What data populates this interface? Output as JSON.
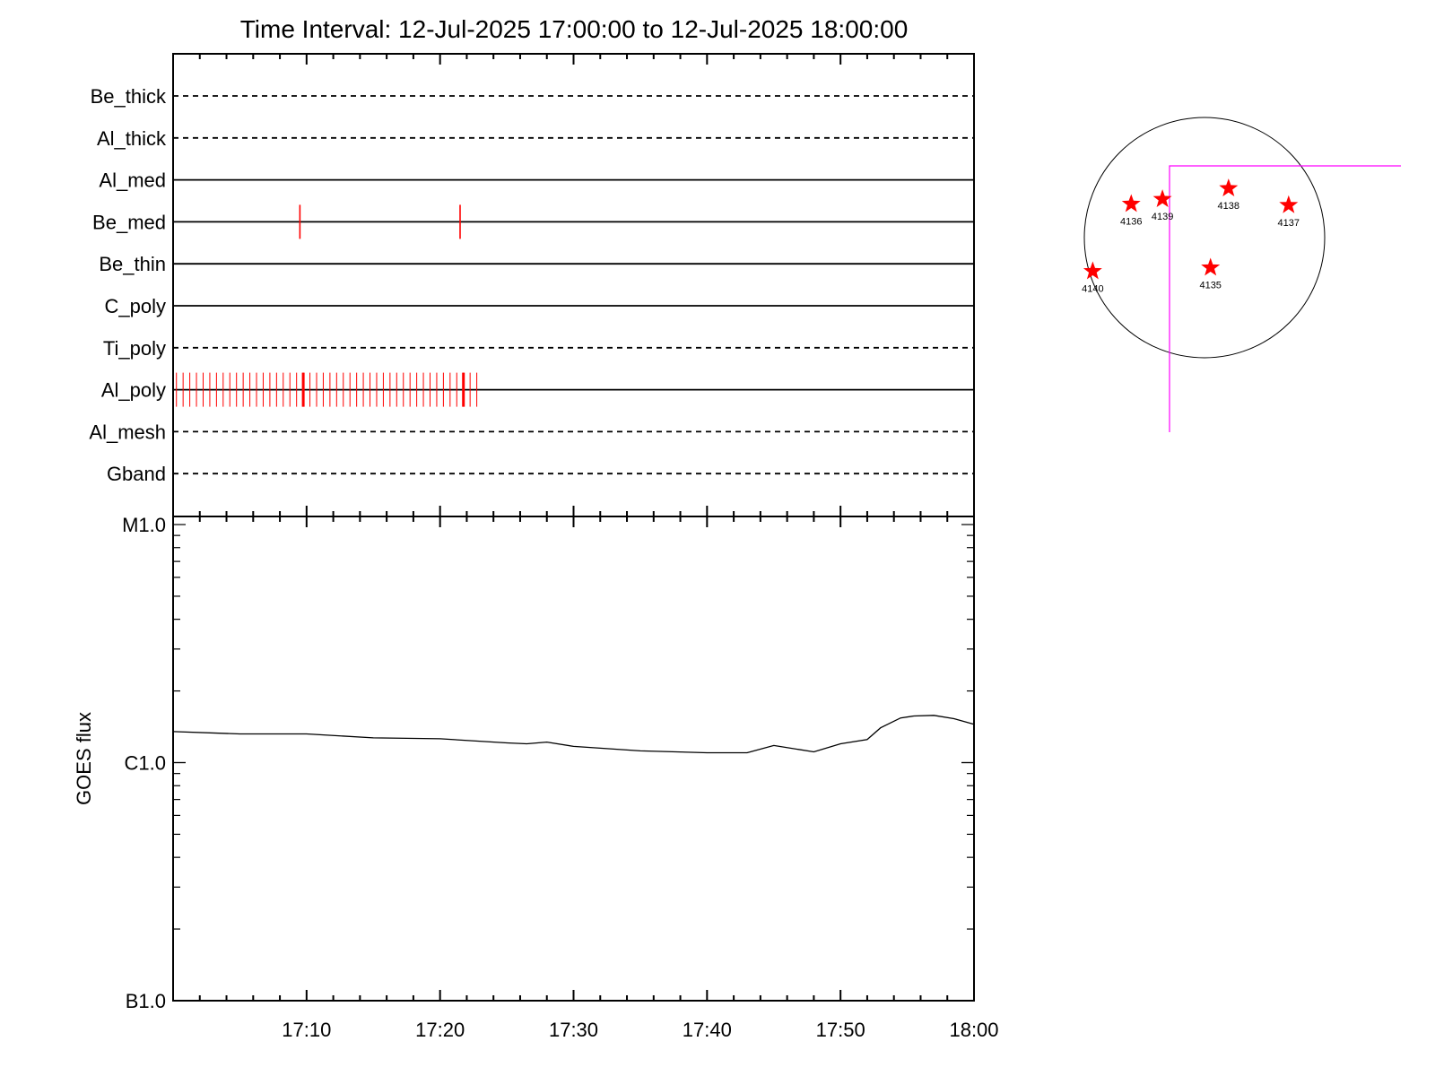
{
  "title": "Time Interval: 12-Jul-2025 17:00:00 to 12-Jul-2025 18:00:00",
  "colors": {
    "axis": "#000000",
    "marks": "#ff0000",
    "fov": "#ff00ff",
    "disk": "#000000",
    "curve": "#000000"
  },
  "chart_data": [
    {
      "type": "timeline",
      "x_range": [
        "17:00",
        "18:00"
      ],
      "x_unit": "minutes after 17:00",
      "channels": [
        {
          "name": "Be_thick",
          "style": "dashed",
          "events": []
        },
        {
          "name": "Al_thick",
          "style": "dashed",
          "events": []
        },
        {
          "name": "Al_med",
          "style": "solid",
          "events": []
        },
        {
          "name": "Be_med",
          "style": "solid",
          "events": [
            "17:09:30",
            "17:21:30"
          ]
        },
        {
          "name": "Be_thin",
          "style": "solid",
          "events": []
        },
        {
          "name": "C_poly",
          "style": "solid",
          "events": []
        },
        {
          "name": "Ti_poly",
          "style": "dashed",
          "events": []
        },
        {
          "name": "Al_poly",
          "style": "solid",
          "events_note": "dense marks",
          "events_start": "17:00:15",
          "events_end": "17:22:45",
          "events_step_seconds": 30,
          "events_heavy": [
            "17:09:45",
            "17:21:45"
          ]
        },
        {
          "name": "Al_mesh",
          "style": "dashed",
          "events": []
        },
        {
          "name": "Gband",
          "style": "dashed",
          "events": []
        }
      ]
    },
    {
      "type": "line",
      "ylabel": "GOES flux",
      "yscale": "log",
      "ylim": [
        1e-07,
        1e-05
      ],
      "yticks": [
        {
          "label": "M1.0",
          "value": 1e-05
        },
        {
          "label": "C1.0",
          "value": 1e-06
        },
        {
          "label": "B1.0",
          "value": 1e-07
        }
      ],
      "xticks": [
        "17:10",
        "17:20",
        "17:30",
        "17:40",
        "17:50",
        "18:00"
      ],
      "x_minutes": [
        0,
        5,
        10,
        15,
        20,
        25,
        26.5,
        28,
        30,
        35,
        40,
        43,
        45,
        48,
        50,
        52,
        53,
        54.5,
        55.5,
        57,
        58.5,
        60
      ],
      "values": [
        1.35e-06,
        1.32e-06,
        1.32e-06,
        1.27e-06,
        1.26e-06,
        1.21e-06,
        1.2e-06,
        1.22e-06,
        1.17e-06,
        1.12e-06,
        1.1e-06,
        1.1e-06,
        1.18e-06,
        1.11e-06,
        1.2e-06,
        1.25e-06,
        1.4e-06,
        1.54e-06,
        1.57e-06,
        1.58e-06,
        1.53e-06,
        1.45e-06
      ]
    },
    {
      "type": "scatter",
      "description": "solar disk with active regions",
      "points": [
        {
          "label": "4135",
          "x": 0.05,
          "y": -0.25
        },
        {
          "label": "4136",
          "x": -0.61,
          "y": 0.28
        },
        {
          "label": "4137",
          "x": 0.7,
          "y": 0.27
        },
        {
          "label": "4138",
          "x": 0.2,
          "y": 0.41
        },
        {
          "label": "4139",
          "x": -0.35,
          "y": 0.32
        },
        {
          "label": "4140",
          "x": -0.93,
          "y": -0.28
        }
      ]
    }
  ]
}
